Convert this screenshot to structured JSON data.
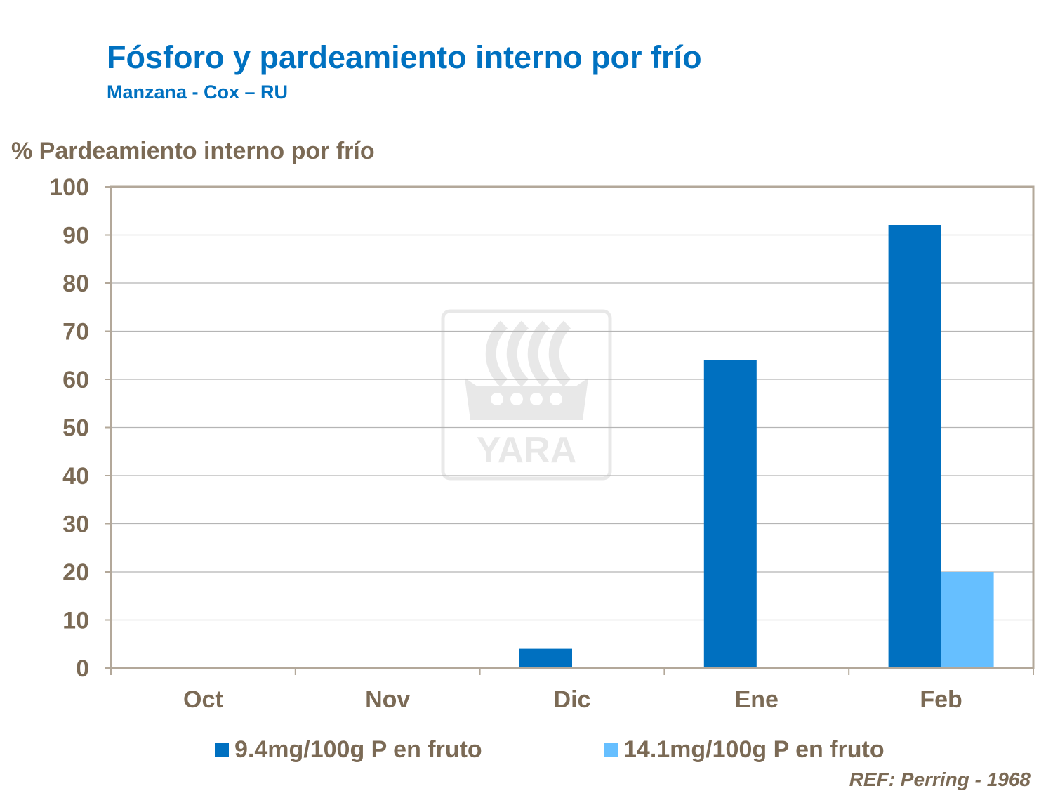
{
  "header": {
    "title": "Fósforo y pardeamiento interno por frío",
    "subtitle": "Manzana - Cox – RU"
  },
  "watermark": {
    "text": "YARA"
  },
  "reference": "REF: Perring - 1968",
  "colors": {
    "title": "#0071c0",
    "text": "#7b6a55",
    "series1": "#0070c0",
    "series2": "#66bfff",
    "grid": "#b5b5b5",
    "frame": "#b3a89a"
  },
  "chart_data": {
    "type": "bar",
    "title": "Fósforo y pardeamiento interno por frío",
    "subtitle": "Manzana - Cox – RU",
    "ylabel": "% Pardeamiento interno por frío",
    "xlabel": "",
    "categories": [
      "Oct",
      "Nov",
      "Dic",
      "Ene",
      "Feb"
    ],
    "series": [
      {
        "name": "9.4mg/100g P en fruto",
        "values": [
          0,
          0,
          4,
          64,
          92
        ]
      },
      {
        "name": "14.1mg/100g P en fruto",
        "values": [
          0,
          0,
          0,
          0,
          20
        ]
      }
    ],
    "ylim": [
      0,
      100
    ],
    "yticks": [
      0,
      10,
      20,
      30,
      40,
      50,
      60,
      70,
      80,
      90,
      100
    ],
    "grid": true,
    "legend": "bottom"
  }
}
